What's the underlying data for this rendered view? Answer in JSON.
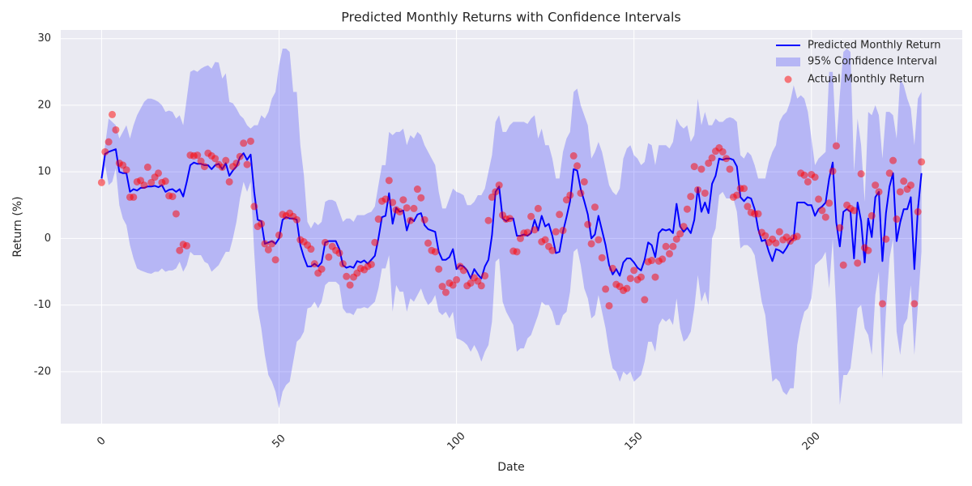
{
  "chart_data": {
    "type": "line",
    "title": "Predicted Monthly Returns with Confidence Intervals",
    "x_label": "Date",
    "y_label": "Return (%)",
    "xlim": [
      -11.5,
      242.5
    ],
    "ylim": [
      -27.8,
      31.3
    ],
    "xticks": [
      0,
      50,
      100,
      150,
      200
    ],
    "yticks": [
      -20,
      -10,
      0,
      10,
      20,
      30
    ],
    "grid": true,
    "legend": "upper right",
    "x": [
      0,
      1,
      2,
      3,
      4,
      5,
      6,
      7,
      8,
      9,
      10,
      11,
      12,
      13,
      14,
      15,
      16,
      17,
      18,
      19,
      20,
      21,
      22,
      23,
      24,
      25,
      26,
      27,
      28,
      29,
      30,
      31,
      32,
      33,
      34,
      35,
      36,
      37,
      38,
      39,
      40,
      41,
      42,
      43,
      44,
      45,
      46,
      47,
      48,
      49,
      50,
      51,
      52,
      53,
      54,
      55,
      56,
      57,
      58,
      59,
      60,
      61,
      62,
      63,
      64,
      65,
      66,
      67,
      68,
      69,
      70,
      71,
      72,
      73,
      74,
      75,
      76,
      77,
      78,
      79,
      80,
      81,
      82,
      83,
      84,
      85,
      86,
      87,
      88,
      89,
      90,
      91,
      92,
      93,
      94,
      95,
      96,
      97,
      98,
      99,
      100,
      101,
      102,
      103,
      104,
      105,
      106,
      107,
      108,
      109,
      110,
      111,
      112,
      113,
      114,
      115,
      116,
      117,
      118,
      119,
      120,
      121,
      122,
      123,
      124,
      125,
      126,
      127,
      128,
      129,
      130,
      131,
      132,
      133,
      134,
      135,
      136,
      137,
      138,
      139,
      140,
      141,
      142,
      143,
      144,
      145,
      146,
      147,
      148,
      149,
      150,
      151,
      152,
      153,
      154,
      155,
      156,
      157,
      158,
      159,
      160,
      161,
      162,
      163,
      164,
      165,
      166,
      167,
      168,
      169,
      170,
      171,
      172,
      173,
      174,
      175,
      176,
      177,
      178,
      179,
      180,
      181,
      182,
      183,
      184,
      185,
      186,
      187,
      188,
      189,
      190,
      191,
      192,
      193,
      194,
      195,
      196,
      197,
      198,
      199,
      200,
      201,
      202,
      203,
      204,
      205,
      206,
      207,
      208,
      209,
      210,
      211,
      212,
      213,
      214,
      215,
      216,
      217,
      218,
      219,
      220,
      221,
      222,
      223,
      224,
      225,
      226,
      227,
      228,
      229,
      230,
      231
    ],
    "series": [
      {
        "name": "Predicted Monthly Return",
        "color": "#0000ff",
        "values": [
          9,
          12.7,
          13,
          13.2,
          13.4,
          10,
          9.8,
          9.8,
          7,
          7.4,
          7.2,
          7.6,
          7.6,
          7.8,
          7.8,
          7.9,
          7.7,
          8,
          7,
          7.3,
          7.4,
          7,
          7.4,
          6.3,
          8.5,
          11,
          11.4,
          11.2,
          11.2,
          11,
          11,
          10.4,
          11,
          11.2,
          10.4,
          11.3,
          9.4,
          10.2,
          10.8,
          12.2,
          12.8,
          11.8,
          12.6,
          7,
          2.8,
          2.6,
          -0.8,
          -0.6,
          -0.4,
          -0.8,
          0,
          2.8,
          3.2,
          3,
          3,
          2.8,
          -1,
          -2.8,
          -4.2,
          -4.2,
          -3.8,
          -4.2,
          -3.6,
          -0.6,
          -0.4,
          -0.4,
          -0.4,
          -1.6,
          -4,
          -4.4,
          -4.2,
          -4.4,
          -3.4,
          -3.6,
          -3.3,
          -3.8,
          -3.2,
          -2.6,
          0,
          3.2,
          3.4,
          6.8,
          2.2,
          4.6,
          4,
          4.2,
          1.2,
          3,
          2.6,
          3.6,
          3.8,
          2,
          1.4,
          1.2,
          1,
          -2,
          -3.2,
          -3.2,
          -2.8,
          -1.6,
          -4.6,
          -4,
          -4.2,
          -4.8,
          -6,
          -4.6,
          -5.4,
          -6,
          -4.2,
          -3.2,
          0.5,
          7,
          7.8,
          3,
          2.6,
          3,
          3,
          0.4,
          0.4,
          0.6,
          0.4,
          0.8,
          2.8,
          1.2,
          3.4,
          1.8,
          2.2,
          0.4,
          -2.2,
          -2,
          1,
          3.2,
          5.6,
          10.4,
          10.2,
          7.4,
          5.6,
          3.6,
          0,
          0.6,
          3.4,
          1.2,
          -1,
          -4,
          -5.4,
          -4.6,
          -5.6,
          -3.6,
          -3,
          -3,
          -3.6,
          -4.4,
          -4.8,
          -3.2,
          -0.6,
          -1,
          -2.8,
          0.8,
          1.4,
          1.2,
          1.4,
          0.8,
          5.2,
          1.8,
          1,
          1.6,
          0.8,
          2.8,
          7.6,
          4,
          5.4,
          3.8,
          8.2,
          9.4,
          12,
          11.8,
          12,
          12,
          11.8,
          10.8,
          6.2,
          5.6,
          6.2,
          6,
          4.4,
          1.4,
          -0.4,
          -0.2,
          -2,
          -3.4,
          -1.6,
          -1.8,
          -2.2,
          -1.4,
          -0.4,
          0,
          5.4,
          5.4,
          5.4,
          5,
          5,
          3.4,
          4.4,
          4.8,
          5.4,
          9,
          11.4,
          2.4,
          -1.2,
          4,
          4.4,
          4,
          -3,
          5.4,
          2.6,
          -3.6,
          3,
          0.2,
          6.2,
          7,
          -3.4,
          3.8,
          7.8,
          9.8,
          -0.4,
          2.4,
          4.4,
          4.4,
          6.2,
          -4.6,
          4.4,
          9.8
        ]
      }
    ],
    "band": {
      "name": "95% Confidence Interval",
      "color": "#0000ff",
      "alpha": 0.22,
      "upper": [
        10,
        14,
        18,
        17.5,
        17,
        15,
        16,
        17,
        15,
        17,
        18.5,
        19.5,
        20.5,
        21,
        21,
        20.8,
        20.5,
        20,
        19,
        19.2,
        19,
        18,
        18.5,
        17,
        21,
        25,
        25.3,
        25,
        25.5,
        25.8,
        26,
        25.5,
        26.5,
        26.4,
        24,
        24.8,
        20.5,
        20.3,
        19.5,
        18.5,
        18,
        17,
        16.5,
        17,
        17,
        18.5,
        18,
        19,
        21,
        22,
        26,
        28.5,
        28.5,
        28,
        22,
        22,
        14,
        9.5,
        2.5,
        1.5,
        2.5,
        2,
        2.5,
        5.5,
        5.8,
        5.8,
        5.5,
        4,
        2.5,
        3,
        3,
        2.5,
        3.5,
        3.5,
        3.5,
        3.8,
        4,
        4.8,
        8,
        11,
        11,
        16,
        15.5,
        16,
        16,
        16.5,
        14,
        15.5,
        15,
        16,
        15.5,
        14,
        13,
        12,
        11,
        7,
        4.5,
        4.5,
        6,
        7.5,
        7,
        6.8,
        6.5,
        5,
        5,
        5.5,
        6.5,
        6.5,
        7.5,
        10,
        12.5,
        17.5,
        18.5,
        16,
        16,
        17,
        17.5,
        17.5,
        17.5,
        17.5,
        17.2,
        18,
        18.5,
        15,
        16.5,
        14,
        14,
        12,
        9,
        9,
        13,
        15,
        16,
        22,
        22.5,
        20,
        18.5,
        17,
        12,
        13,
        14.5,
        13,
        10.5,
        8,
        7,
        6.5,
        7.5,
        12,
        13.5,
        14,
        12.5,
        12,
        11,
        11.5,
        14.3,
        14,
        11,
        14,
        14,
        14,
        13.5,
        14.5,
        18,
        17,
        16.5,
        17,
        14.5,
        15.5,
        21,
        17,
        19,
        17,
        17,
        18,
        17.5,
        17.5,
        18,
        18.2,
        18,
        17.5,
        12.5,
        12,
        13,
        12.5,
        11,
        9,
        9,
        9,
        11.5,
        13,
        14,
        17.5,
        18.5,
        19,
        20.5,
        23,
        21,
        21.5,
        21,
        19,
        15,
        11,
        12,
        12.5,
        13,
        25,
        25,
        14,
        21.5,
        28,
        28.5,
        28,
        10,
        18,
        14,
        5.5,
        19,
        18.5,
        20,
        18.5,
        12,
        19,
        19,
        18.5,
        15,
        24,
        23,
        21,
        19.5,
        14,
        21,
        22
      ],
      "lower": [
        8,
        11,
        8,
        8.5,
        10.5,
        5,
        3,
        2,
        -1,
        -3,
        -4.5,
        -4.8,
        -5,
        -5.2,
        -5.3,
        -5,
        -5,
        -4.5,
        -5,
        -4.8,
        -4.8,
        -4.5,
        -3.5,
        -5,
        -4,
        -2,
        -2.5,
        -2.5,
        -2.5,
        -3.5,
        -3.8,
        -5,
        -4.5,
        -4,
        -3,
        -2,
        -2,
        0,
        2.5,
        6,
        8.5,
        7,
        8.5,
        -2,
        -10.5,
        -13.5,
        -17.5,
        -20.5,
        -21.5,
        -23,
        -25.5,
        -23,
        -22,
        -21.5,
        -18.5,
        -15.5,
        -15,
        -14,
        -10.5,
        -10.3,
        -9.5,
        -10.5,
        -9.5,
        -7,
        -6.5,
        -6.5,
        -6.5,
        -7,
        -10.5,
        -11.2,
        -11.2,
        -11.5,
        -10.5,
        -10.5,
        -10.3,
        -10.5,
        -10,
        -9.5,
        -7.5,
        -4.5,
        -4.5,
        -2.5,
        -11,
        -7,
        -8,
        -8,
        -11,
        -9,
        -9.5,
        -8.5,
        -7.5,
        -9,
        -10,
        -9.5,
        -8.5,
        -11,
        -11.5,
        -11,
        -12,
        -11,
        -15,
        -15.2,
        -15.5,
        -16,
        -17,
        -16,
        -17,
        -18.5,
        -17,
        -16,
        -12.5,
        -3.5,
        -3,
        -9.5,
        -11,
        -12,
        -13,
        -17,
        -16.5,
        -16.5,
        -15,
        -14.5,
        -13,
        -11.5,
        -9.5,
        -10,
        -10,
        -11,
        -13,
        -13,
        -11.5,
        -11,
        -8,
        -2,
        -1.5,
        -4,
        -7.5,
        -9,
        -12,
        -11.5,
        -8.5,
        -11,
        -13.5,
        -17,
        -19.5,
        -20,
        -21.5,
        -20,
        -20.5,
        -20,
        -21.5,
        -21,
        -20.5,
        -18.5,
        -15.5,
        -15.5,
        -17,
        -13,
        -12,
        -12.5,
        -12,
        -13,
        -9,
        -13.5,
        -15.5,
        -15,
        -14,
        -10.5,
        -5.5,
        -9.5,
        -8,
        -10,
        0,
        1.5,
        6.5,
        7,
        6,
        6,
        6,
        4,
        -1.5,
        -1,
        -1,
        -1.5,
        -2.5,
        -6,
        -9.5,
        -11.5,
        -16.5,
        -21.5,
        -21,
        -21.5,
        -23,
        -23.5,
        -22.5,
        -22.5,
        -16,
        -13,
        -11,
        -10.5,
        -9,
        -4,
        -3.5,
        -3,
        -2,
        -7.5,
        0,
        -11,
        -25,
        -20.5,
        -20.5,
        -19.5,
        -15,
        -10.5,
        -10,
        -13.5,
        -14.5,
        -17.5,
        -8.5,
        -5,
        -21,
        -11,
        -3,
        0,
        -14,
        -17.5,
        -13,
        -12,
        -7,
        -17.5,
        -10,
        -2
      ]
    },
    "scatter": {
      "name": "Actual Monthly Return",
      "color": "#ff0000",
      "alpha": 0.5,
      "values": [
        8.4,
        13,
        14.5,
        18.6,
        16.3,
        11.3,
        11,
        10.3,
        6.2,
        6.2,
        8.5,
        8.7,
        8,
        10.7,
        8.4,
        9.2,
        9.8,
        8.4,
        8.6,
        6.4,
        6.3,
        3.7,
        -1.8,
        -0.9,
        -1.1,
        12.5,
        12.4,
        12.5,
        11.6,
        10.8,
        12.8,
        12.4,
        12,
        11.1,
        10.7,
        11.7,
        8.5,
        10.8,
        11.3,
        12.3,
        14.3,
        11.1,
        14.6,
        4.8,
        1.8,
        2.2,
        -0.8,
        -1.7,
        -0.8,
        -3.2,
        0.5,
        3.6,
        3.4,
        3.8,
        3.3,
        2.8,
        -0.2,
        -0.5,
        -1,
        -1.6,
        -3.8,
        -5.2,
        -4.6,
        -0.6,
        -2.8,
        -1.2,
        -1.8,
        -2.2,
        -3.8,
        -5.7,
        -7,
        -5.8,
        -5.2,
        -4.5,
        -4.7,
        -4.2,
        -3.9,
        -0.6,
        2.9,
        5.6,
        5.9,
        8.7,
        5.4,
        4.3,
        4,
        5.8,
        4.6,
        2.7,
        4.5,
        7.4,
        6.1,
        2.8,
        -0.7,
        -1.8,
        -2,
        -4.6,
        -7.2,
        -8.1,
        -6.7,
        -7,
        -6.2,
        -4.2,
        -4.8,
        -7.1,
        -6.7,
        -5.9,
        -6.4,
        -7.1,
        -5.6,
        2.7,
        6.2,
        7,
        8,
        3.5,
        2.9,
        3,
        -1.9,
        -2,
        0,
        0.8,
        0.9,
        3.3,
        1.3,
        4.5,
        -0.5,
        -0.2,
        -1.2,
        -1.8,
        1,
        3.6,
        1.2,
        5.8,
        6.5,
        12.4,
        10.9,
        6.8,
        8.5,
        2.1,
        -0.8,
        4.7,
        -0.2,
        -2.9,
        -7.6,
        -10.1,
        -4.5,
        -6.9,
        -7.2,
        -7.8,
        -7.5,
        -6,
        -4.8,
        -6.2,
        -5.8,
        -9.2,
        -3.5,
        -3.3,
        -5.8,
        -3.4,
        -3.1,
        -1.2,
        -2.3,
        -1.2,
        -0.1,
        0.7,
        1.8,
        4.4,
        6.3,
        10.8,
        7.3,
        10.4,
        6.8,
        11.3,
        12.1,
        13.1,
        13.6,
        13,
        12,
        10.4,
        6.2,
        6.5,
        7.5,
        7.5,
        4.8,
        3.9,
        3.7,
        3.7,
        0.9,
        0.4,
        -0.6,
        -0.1,
        -0.7,
        1,
        -0.2,
        0.2,
        -0.4,
        0.1,
        0.3,
        9.8,
        9.5,
        8.5,
        9.6,
        9.2,
        5.9,
        4.2,
        3.2,
        5.3,
        10.1,
        13.9,
        1.6,
        -4,
        5,
        4.5,
        4.2,
        -3.7,
        9.7,
        -1.4,
        -1.8,
        3.4,
        8,
        7,
        -9.8,
        -0.1,
        9.8,
        11.7,
        2.9,
        7,
        8.6,
        7.4,
        8,
        -9.8,
        4,
        11.5
      ]
    }
  }
}
